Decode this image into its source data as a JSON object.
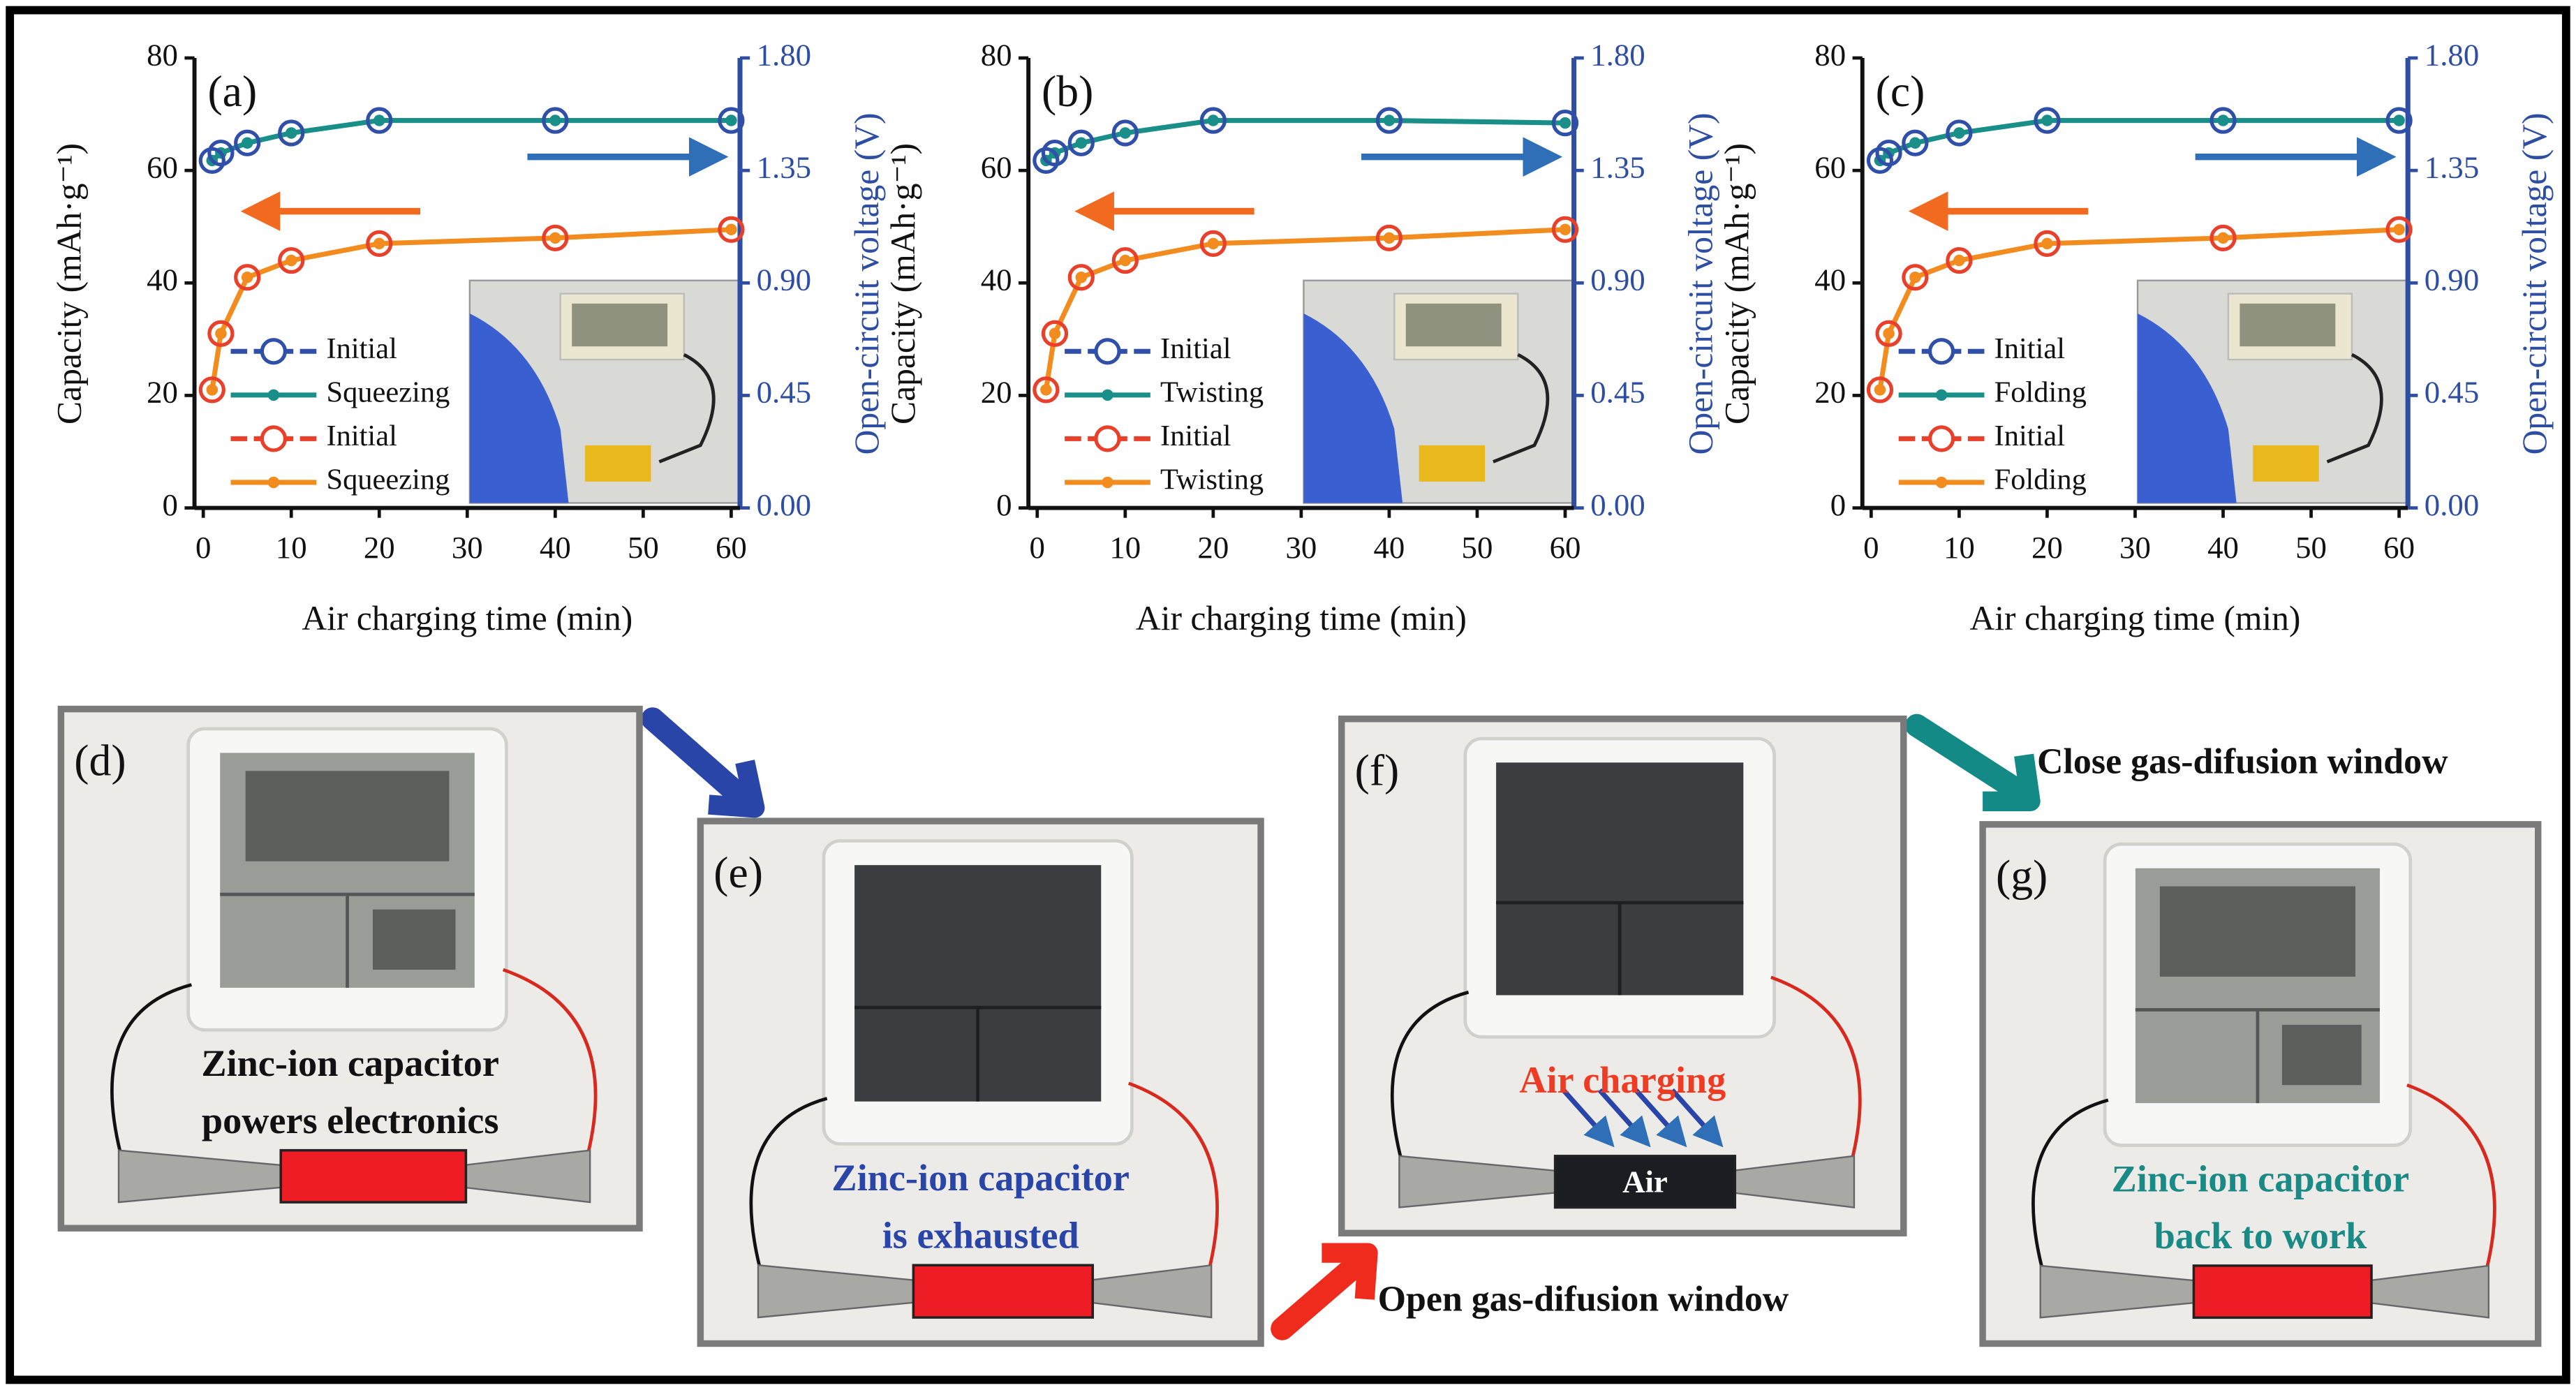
{
  "chart_data": [
    {
      "type": "line",
      "panel_label": "(a)",
      "xlabel": "Air charging time (min)",
      "ylabel": "Capacity (mAh·g⁻¹)",
      "y2label": "Open-circuit voltage (V)",
      "x": [
        1,
        2,
        5,
        10,
        20,
        40,
        60
      ],
      "series": [
        {
          "name": "Initial",
          "color": "#2f4fa8",
          "marker": "open-circle",
          "axis": "y2",
          "values": [
            1.39,
            1.42,
            1.46,
            1.5,
            1.55,
            1.55,
            1.55
          ]
        },
        {
          "name": "Squeezing",
          "color": "#1a8f8a",
          "marker": "dot",
          "axis": "y2",
          "values": [
            1.39,
            1.42,
            1.46,
            1.5,
            1.55,
            1.55,
            1.55
          ]
        },
        {
          "name": "Initial",
          "color": "#e8402a",
          "marker": "open-circle",
          "values": [
            21,
            31,
            41,
            44,
            47,
            48,
            49.5
          ]
        },
        {
          "name": "Squeezing",
          "color": "#f28c1f",
          "marker": "dot",
          "values": [
            21,
            31,
            41,
            44,
            47,
            48,
            49.5
          ]
        }
      ],
      "xlim": [
        -1,
        61
      ],
      "xticks": [
        0,
        10,
        20,
        30,
        40,
        50,
        60
      ],
      "ylim": [
        0,
        80
      ],
      "yticks": [
        0,
        20,
        40,
        60,
        80
      ],
      "y2lim": [
        0,
        1.8
      ],
      "y2ticks": [
        {
          "value": 0,
          "label": "0.00"
        },
        {
          "value": 0.45,
          "label": "0.45"
        },
        {
          "value": 0.9,
          "label": "0.90"
        },
        {
          "value": 1.35,
          "label": "1.35"
        },
        {
          "value": 1.8,
          "label": "1.80"
        }
      ],
      "legend": "lower left",
      "y2color": "#2e4ea3"
    },
    {
      "type": "line",
      "panel_label": "(b)",
      "xlabel": "Air charging time (min)",
      "ylabel": "Capacity (mAh·g⁻¹)",
      "y2label": "Open-circuit voltage (V)",
      "x": [
        1,
        2,
        5,
        10,
        20,
        40,
        60
      ],
      "series": [
        {
          "name": "Initial",
          "color": "#2f4fa8",
          "marker": "open-circle",
          "axis": "y2",
          "values": [
            1.39,
            1.42,
            1.46,
            1.5,
            1.55,
            1.55,
            1.54
          ]
        },
        {
          "name": "Twisting",
          "color": "#1a8f8a",
          "marker": "dot",
          "axis": "y2",
          "values": [
            1.39,
            1.42,
            1.46,
            1.5,
            1.55,
            1.55,
            1.54
          ]
        },
        {
          "name": "Initial",
          "color": "#e8402a",
          "marker": "open-circle",
          "values": [
            21,
            31,
            41,
            44,
            47,
            48,
            49.5
          ]
        },
        {
          "name": "Twisting",
          "color": "#f28c1f",
          "marker": "dot",
          "values": [
            21,
            31,
            41,
            44,
            47,
            48,
            49.5
          ]
        }
      ],
      "xlim": [
        -1,
        61
      ],
      "xticks": [
        0,
        10,
        20,
        30,
        40,
        50,
        60
      ],
      "ylim": [
        0,
        80
      ],
      "yticks": [
        0,
        20,
        40,
        60,
        80
      ],
      "y2lim": [
        0,
        1.8
      ],
      "y2ticks": [
        {
          "value": 0,
          "label": "0.00"
        },
        {
          "value": 0.45,
          "label": "0.45"
        },
        {
          "value": 0.9,
          "label": "0.90"
        },
        {
          "value": 1.35,
          "label": "1.35"
        },
        {
          "value": 1.8,
          "label": "1.80"
        }
      ],
      "legend": "lower left",
      "y2color": "#2e4ea3"
    },
    {
      "type": "line",
      "panel_label": "(c)",
      "xlabel": "Air charging time (min)",
      "ylabel": "Capacity (mAh·g⁻¹)",
      "y2label": "Open-circuit voltage (V)",
      "x": [
        1,
        2,
        5,
        10,
        20,
        40,
        60
      ],
      "series": [
        {
          "name": "Initial",
          "color": "#2f4fa8",
          "marker": "open-circle",
          "axis": "y2",
          "values": [
            1.39,
            1.42,
            1.46,
            1.5,
            1.55,
            1.55,
            1.55
          ]
        },
        {
          "name": "Folding",
          "color": "#1a8f8a",
          "marker": "dot",
          "axis": "y2",
          "values": [
            1.39,
            1.42,
            1.46,
            1.5,
            1.55,
            1.55,
            1.55
          ]
        },
        {
          "name": "Initial",
          "color": "#e8402a",
          "marker": "open-circle",
          "values": [
            21,
            31,
            41,
            44,
            47,
            48,
            49.5
          ]
        },
        {
          "name": "Folding",
          "color": "#f28c1f",
          "marker": "dot",
          "values": [
            21,
            31,
            41,
            44,
            47,
            48,
            49.5
          ]
        }
      ],
      "xlim": [
        -1,
        61
      ],
      "xticks": [
        0,
        10,
        20,
        30,
        40,
        50,
        60
      ],
      "ylim": [
        0,
        80
      ],
      "yticks": [
        0,
        20,
        40,
        60,
        80
      ],
      "y2lim": [
        0,
        1.8
      ],
      "y2ticks": [
        {
          "value": 0,
          "label": "0.00"
        },
        {
          "value": 0.45,
          "label": "0.45"
        },
        {
          "value": 0.9,
          "label": "0.90"
        },
        {
          "value": 1.35,
          "label": "1.35"
        },
        {
          "value": 1.8,
          "label": "1.80"
        }
      ],
      "legend": "lower left",
      "y2color": "#2e4ea3"
    }
  ],
  "photos": [
    {
      "label": "(d)",
      "caption": [
        "Zinc-ion capacitor",
        "powers electronics"
      ]
    },
    {
      "label": "(e)",
      "caption": [
        "Zinc-ion capacitor",
        "is exhausted"
      ]
    },
    {
      "label": "(f)",
      "caption": [
        "Air charging"
      ],
      "device_text": "Air"
    },
    {
      "label": "(g)",
      "caption": [
        "Zinc-ion capacitor",
        "back to work"
      ]
    }
  ],
  "transitions": {
    "close": "Close gas-difusion window",
    "open": "Open gas-difusion window"
  }
}
